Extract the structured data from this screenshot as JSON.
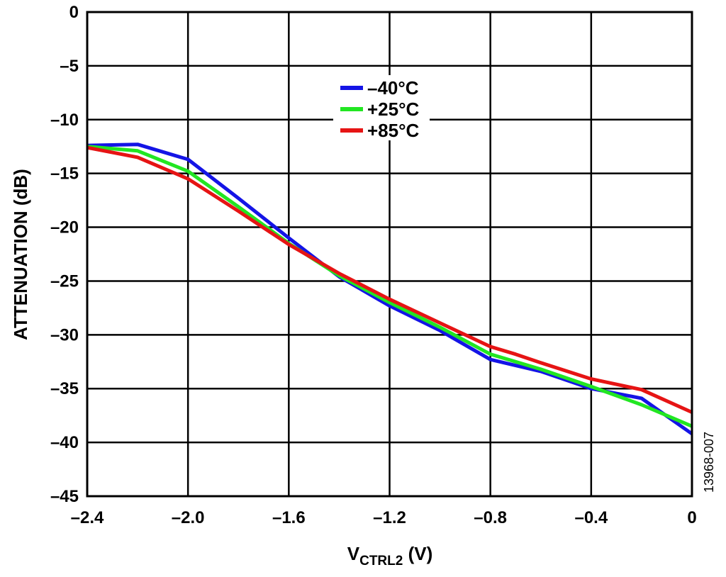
{
  "figure_id": "13968-007",
  "chart_data": {
    "type": "line",
    "xlabel_main": "V",
    "xlabel_sub": "CTRL2",
    "xlabel_unit": " (V)",
    "ylabel": "ATTENUATION (dB)",
    "xlim": [
      -2.4,
      0
    ],
    "ylim": [
      -45,
      0
    ],
    "grid": true,
    "legend_position": "top-center",
    "x_ticks": [
      -2.4,
      -2.0,
      -1.6,
      -1.2,
      -0.8,
      -0.4,
      0
    ],
    "x_tick_labels": [
      "–2.4",
      "–2.0",
      "–1.6",
      "–1.2",
      "–0.8",
      "–0.4",
      "0"
    ],
    "y_ticks": [
      0,
      -5,
      -10,
      -15,
      -20,
      -25,
      -30,
      -35,
      -40,
      -45
    ],
    "y_tick_labels": [
      "0",
      "–5",
      "–10",
      "–15",
      "–20",
      "–25",
      "–30",
      "–35",
      "–40",
      "–45"
    ],
    "series": [
      {
        "name": "–40°C",
        "color": "#1414e6",
        "x": [
          -2.4,
          -2.2,
          -2.0,
          -1.8,
          -1.6,
          -1.4,
          -1.2,
          -1.0,
          -0.8,
          -0.6,
          -0.4,
          -0.2,
          0
        ],
        "y": [
          -12.4,
          -12.3,
          -13.7,
          -17.3,
          -21.0,
          -24.6,
          -27.3,
          -29.6,
          -32.3,
          -33.4,
          -35.0,
          -35.9,
          -39.2
        ]
      },
      {
        "name": "+25°C",
        "color": "#22e622",
        "x": [
          -2.4,
          -2.2,
          -2.0,
          -1.8,
          -1.6,
          -1.4,
          -1.2,
          -1.0,
          -0.8,
          -0.6,
          -0.4,
          -0.2,
          0
        ],
        "y": [
          -12.5,
          -12.9,
          -14.8,
          -18.1,
          -21.5,
          -24.5,
          -27.0,
          -29.3,
          -31.8,
          -33.2,
          -34.8,
          -36.5,
          -38.5
        ]
      },
      {
        "name": "+85°C",
        "color": "#e61414",
        "x": [
          -2.4,
          -2.2,
          -2.0,
          -1.8,
          -1.6,
          -1.4,
          -1.2,
          -1.0,
          -0.8,
          -0.7,
          -0.6,
          -0.4,
          -0.2,
          0
        ],
        "y": [
          -12.6,
          -13.5,
          -15.5,
          -18.5,
          -21.6,
          -24.3,
          -26.7,
          -28.9,
          -31.1,
          -31.8,
          -32.6,
          -34.1,
          -35.1,
          -37.2
        ]
      }
    ]
  }
}
